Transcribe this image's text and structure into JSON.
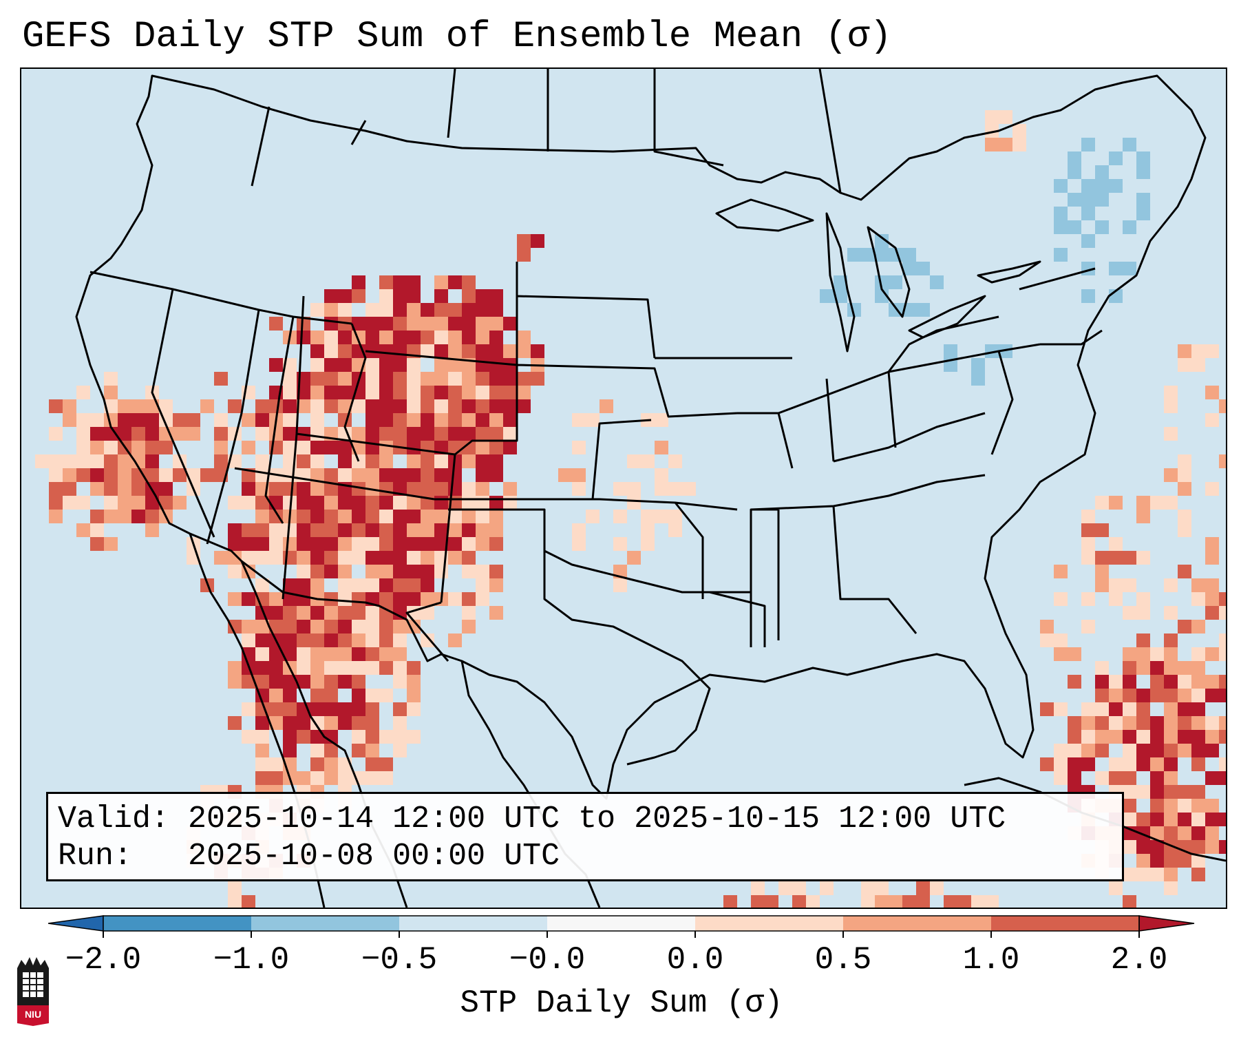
{
  "title": "GEFS Daily STP Sum of Ensemble Mean (σ)",
  "valid_line": "Valid: 2025-10-14 12:00 UTC to 2025-10-15 12:00 UTC",
  "run_line": "Run:   2025-10-08 00:00 UTC",
  "colorbar": {
    "label": "STP Daily Sum (σ)",
    "ticks": [
      "−2.0",
      "−1.0",
      "−0.5",
      "−0.0",
      "0.0",
      "0.5",
      "1.0",
      "2.0"
    ],
    "bins": [
      {
        "range": "< -2.0",
        "color": "#2166ac"
      },
      {
        "range": "-2.0 to -1.0",
        "color": "#4393c3"
      },
      {
        "range": "-1.0 to -0.5",
        "color": "#92c5de"
      },
      {
        "range": "-0.5 to -0.0",
        "color": "#d1e5f0"
      },
      {
        "range": "-0.0 to 0.0",
        "color": "#f7f7f7"
      },
      {
        "range": "0.0 to 0.5",
        "color": "#fddbc7"
      },
      {
        "range": "0.5 to 1.0",
        "color": "#f4a582"
      },
      {
        "range": "1.0 to 2.0",
        "color": "#d6604d"
      },
      {
        "range": "> 2.0",
        "color": "#b2182b"
      }
    ]
  },
  "logo": {
    "text": "NIU",
    "color": "#c8102e"
  },
  "colors": {
    "ocean": "#d1e5f0",
    "low_pos": "#fddbc7",
    "mid_pos": "#f4a582",
    "high_pos": "#d6604d",
    "max_pos": "#b2182b",
    "neg": "#92c5de"
  }
}
